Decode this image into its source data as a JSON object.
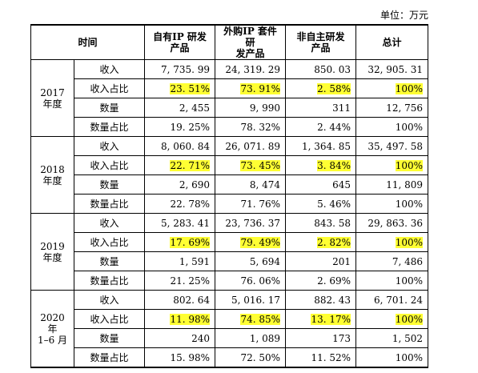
{
  "unit": "单位：万元",
  "header": {
    "period": "时间",
    "columns": [
      [
        "自有IP 研发",
        "产品"
      ],
      [
        "外购IP 套件研",
        "发产品"
      ],
      [
        "非自主研发",
        "产品"
      ],
      [
        "总计"
      ]
    ]
  },
  "groups": [
    {
      "period": [
        "2017",
        "年度"
      ],
      "rows": [
        [
          "收入",
          "7, 735. 99",
          "24, 319. 29",
          "850. 03",
          "32, 905. 31"
        ],
        [
          "收入占比",
          "23. 51%",
          "73. 91%",
          "2. 58%",
          "100%"
        ],
        [
          "数量",
          "2, 455",
          "9, 990",
          "311",
          "12, 756"
        ],
        [
          "数量占比",
          "19. 25%",
          "78. 32%",
          "2. 44%",
          "100%"
        ]
      ]
    },
    {
      "period": [
        "2018",
        "年度"
      ],
      "rows": [
        [
          "收入",
          "8, 060. 84",
          "26, 071. 89",
          "1, 364. 85",
          "35, 497. 58"
        ],
        [
          "收入占比",
          "22. 71%",
          "73. 45%",
          "3. 84%",
          "100%"
        ],
        [
          "数量",
          "2, 690",
          "8, 474",
          "645",
          "11, 809"
        ],
        [
          "数量占比",
          "22. 78%",
          "71. 76%",
          "5. 46%",
          "100%"
        ]
      ]
    },
    {
      "period": [
        "2019",
        "年度"
      ],
      "rows": [
        [
          "收入",
          "5, 283. 41",
          "23, 736. 37",
          "843. 58",
          "29, 863. 36"
        ],
        [
          "收入占比",
          "17. 69%",
          "79. 49%",
          "2. 82%",
          "100%"
        ],
        [
          "数量",
          "1, 591",
          "5, 694",
          "201",
          "7, 486"
        ],
        [
          "数量占比",
          "21. 25%",
          "76. 06%",
          "2. 69%",
          "100%"
        ]
      ]
    },
    {
      "period": [
        "2020 年",
        "1–6 月"
      ],
      "rows": [
        [
          "收入",
          "802. 64",
          "5, 016. 17",
          "882. 43",
          "6, 701. 24"
        ],
        [
          "收入占比",
          "11. 98%",
          "74. 85%",
          "13. 17%",
          "100%"
        ],
        [
          "数量",
          "240",
          "1, 089",
          "173",
          "1, 502"
        ],
        [
          "数量占比",
          "15. 98%",
          "72. 50%",
          "11. 52%",
          "100%"
        ]
      ]
    }
  ]
}
